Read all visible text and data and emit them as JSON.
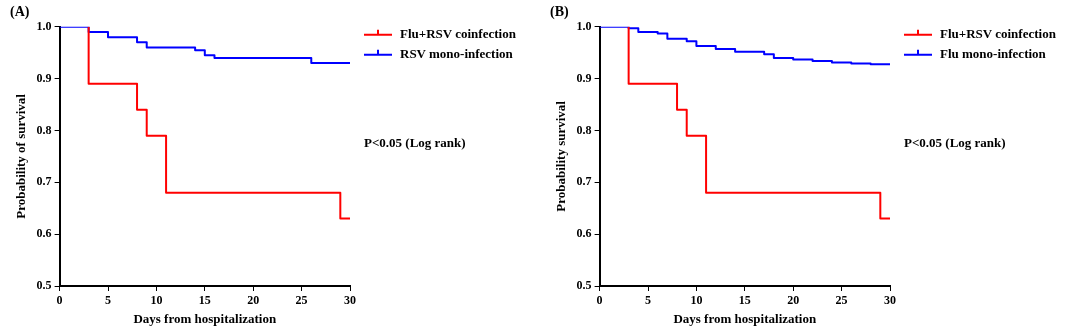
{
  "chart_data": [
    {
      "type": "step",
      "title": "(A)",
      "xlabel": "Days from hospitalization",
      "ylabel": "Probability of survival",
      "xlim": [
        0,
        30
      ],
      "xticks": [
        0,
        5,
        10,
        15,
        20,
        25,
        30
      ],
      "ylim": [
        0.5,
        1.0
      ],
      "yticks": [
        {
          "value": 0.5,
          "label": "0.5"
        },
        {
          "value": 0.6,
          "label": "0.6"
        },
        {
          "value": 0.7,
          "label": "0.7"
        },
        {
          "value": 0.8,
          "label": "0.8"
        },
        {
          "value": 0.9,
          "label": "0.9"
        },
        {
          "value": 1.0,
          "label": "1.0"
        }
      ],
      "grid": false,
      "legend": "top right",
      "annotations": [
        "P<0.05 (Log rank)"
      ],
      "series": [
        {
          "name": "Flu+RSV coinfection",
          "color": "#ff0000",
          "x": [
            3,
            3,
            8,
            9,
            11,
            29,
            30
          ],
          "values": [
            1.0,
            0.89,
            0.84,
            0.79,
            0.68,
            0.63,
            0.63
          ]
        },
        {
          "name": "RSV mono-infection",
          "color": "#0000ff",
          "x": [
            0,
            3,
            5,
            8,
            9,
            14,
            15,
            16,
            26,
            30
          ],
          "values": [
            1.0,
            0.99,
            0.98,
            0.97,
            0.96,
            0.955,
            0.945,
            0.94,
            0.93,
            0.93
          ]
        }
      ]
    },
    {
      "type": "step",
      "title": "(B)",
      "xlabel": "Days from hospitalization",
      "ylabel": "Probability survival",
      "xlim": [
        0,
        30
      ],
      "xticks": [
        0,
        5,
        10,
        15,
        20,
        25,
        30
      ],
      "ylim": [
        0.5,
        1.0
      ],
      "yticks": [
        {
          "value": 0.5,
          "label": "0.5"
        },
        {
          "value": 0.6,
          "label": "0.6"
        },
        {
          "value": 0.7,
          "label": "0.7"
        },
        {
          "value": 0.8,
          "label": "0.8"
        },
        {
          "value": 0.9,
          "label": "0.9"
        },
        {
          "value": 1.0,
          "label": "1.0"
        }
      ],
      "grid": false,
      "legend": "top right",
      "annotations": [
        "P<0.05 (Log rank)"
      ],
      "series": [
        {
          "name": "Flu+RSV coinfection",
          "color": "#ff0000",
          "x": [
            3,
            3,
            8,
            9,
            11,
            29,
            30
          ],
          "values": [
            1.0,
            0.89,
            0.84,
            0.79,
            0.68,
            0.63,
            0.63
          ]
        },
        {
          "name": "Flu mono-infection",
          "color": "#0000ff",
          "x": [
            0,
            3,
            4,
            6,
            7,
            9,
            10,
            12,
            14,
            17,
            18,
            20,
            22,
            24,
            26,
            28,
            30
          ],
          "values": [
            1.0,
            0.997,
            0.99,
            0.987,
            0.977,
            0.972,
            0.963,
            0.957,
            0.952,
            0.947,
            0.94,
            0.937,
            0.934,
            0.931,
            0.929,
            0.928,
            0.928
          ]
        }
      ]
    }
  ]
}
